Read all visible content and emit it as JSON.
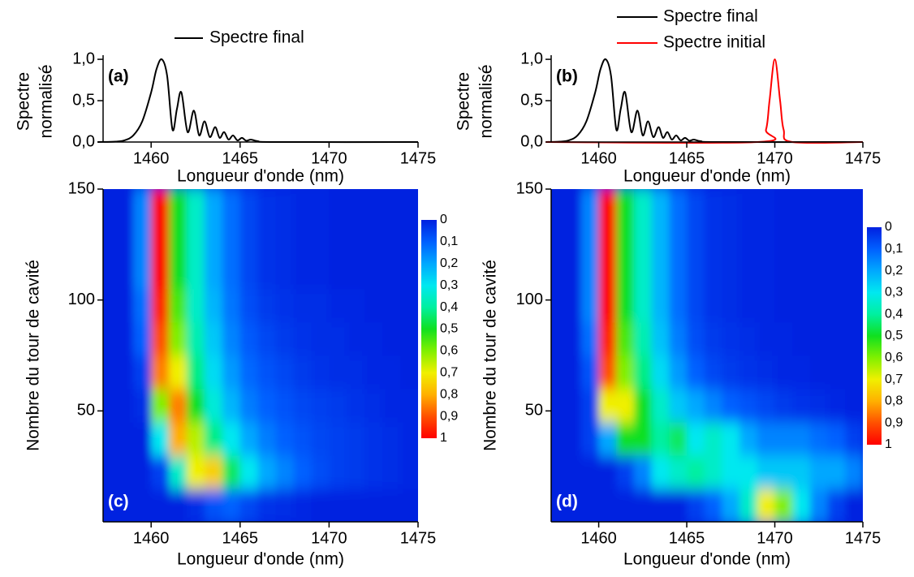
{
  "chart_data": [
    {
      "type": "line",
      "label": "(a)",
      "xlabel": "Longueur d'onde (nm)",
      "ylabel": [
        "Spectre",
        "normalisé"
      ],
      "xlim": [
        1457.3,
        1475
      ],
      "ylim": [
        0,
        1.05
      ],
      "xticks": [
        1460,
        1465,
        1470,
        1475
      ],
      "yticks": [
        {
          "value": 0,
          "label": "0,0"
        },
        {
          "value": 0.5,
          "label": "0,5"
        },
        {
          "value": 1,
          "label": "1,0"
        }
      ],
      "legend": "above",
      "series": [
        {
          "name": "Spectre final",
          "color": "#000000",
          "x": [
            1457,
            1458,
            1458.5,
            1459,
            1459.5,
            1460,
            1460.3,
            1460.6,
            1460.9,
            1461.2,
            1461.45,
            1461.7,
            1462.05,
            1462.4,
            1462.7,
            1463,
            1463.3,
            1463.6,
            1463.85,
            1464.1,
            1464.35,
            1464.6,
            1464.85,
            1465.1,
            1465.35,
            1465.6,
            1466,
            1467,
            1475
          ],
          "values": [
            0,
            0.005,
            0.02,
            0.08,
            0.25,
            0.6,
            0.88,
            1,
            0.8,
            0.15,
            0.4,
            0.6,
            0.12,
            0.38,
            0.08,
            0.25,
            0.06,
            0.18,
            0.05,
            0.12,
            0.03,
            0.08,
            0.02,
            0.05,
            0.015,
            0.03,
            0.01,
            0,
            0
          ]
        }
      ]
    },
    {
      "type": "line",
      "label": "(b)",
      "xlabel": "Longueur d'onde (nm)",
      "ylabel": [
        "Spectre",
        "normalisé"
      ],
      "xlim": [
        1457.3,
        1475
      ],
      "ylim": [
        0,
        1.05
      ],
      "xticks": [
        1460,
        1465,
        1470,
        1475
      ],
      "yticks": [
        {
          "value": 0,
          "label": "0,0"
        },
        {
          "value": 0.5,
          "label": "0,5"
        },
        {
          "value": 1,
          "label": "1,0"
        }
      ],
      "legend": "above",
      "series": [
        {
          "name": "Spectre final",
          "color": "#000000",
          "x": [
            1457,
            1457.8,
            1458.3,
            1458.8,
            1459.3,
            1459.8,
            1460.1,
            1460.4,
            1460.7,
            1461,
            1461.25,
            1461.5,
            1461.85,
            1462.2,
            1462.5,
            1462.8,
            1463.1,
            1463.4,
            1463.65,
            1463.9,
            1464.15,
            1464.4,
            1464.65,
            1464.9,
            1465.15,
            1465.4,
            1465.8,
            1466.8,
            1475
          ],
          "values": [
            0,
            0.005,
            0.02,
            0.08,
            0.25,
            0.6,
            0.88,
            1,
            0.8,
            0.15,
            0.4,
            0.6,
            0.12,
            0.38,
            0.08,
            0.25,
            0.06,
            0.18,
            0.05,
            0.12,
            0.03,
            0.08,
            0.02,
            0.05,
            0.015,
            0.03,
            0.01,
            0,
            0
          ]
        },
        {
          "name": "Spectre initial",
          "color": "#ff0000",
          "x": [
            1457,
            1469,
            1469.5,
            1469.7,
            1470,
            1470.3,
            1470.5,
            1471,
            1475
          ],
          "values": [
            0,
            0,
            0.15,
            0.5,
            1,
            0.5,
            0.15,
            0,
            0
          ]
        }
      ]
    },
    {
      "type": "heatmap",
      "label": "(c)",
      "xlabel": "Longueur d'onde (nm)",
      "ylabel": "Nombre du tour de cavité",
      "xlim": [
        1457.3,
        1475
      ],
      "ylim": [
        0,
        150
      ],
      "xticks": [
        1460,
        1465,
        1470,
        1475
      ],
      "yticks": [
        50,
        100,
        150
      ],
      "x": [
        1457.5,
        1458.5,
        1459.5,
        1460.5,
        1461.5,
        1462.5,
        1463.5,
        1464.5,
        1465.5,
        1466.5,
        1467.5,
        1468.5,
        1469.5,
        1470.5,
        1471.5,
        1472.5,
        1473.5,
        1474.5
      ],
      "y": [
        7.5,
        22.5,
        37.5,
        52.5,
        67.5,
        82.5,
        97.5,
        112.5,
        127.5,
        142.5
      ],
      "values": [
        [
          0,
          0,
          0,
          0,
          0,
          0.02,
          0.08,
          0.1,
          0.06,
          0.03,
          0.02,
          0.01,
          0,
          0,
          0,
          0,
          0,
          0
        ],
        [
          0,
          0,
          0,
          0.05,
          0.35,
          0.7,
          0.75,
          0.45,
          0.3,
          0.2,
          0.15,
          0.1,
          0.07,
          0.05,
          0.04,
          0.03,
          0.02,
          0.01
        ],
        [
          0,
          0,
          0,
          0.3,
          0.8,
          0.65,
          0.42,
          0.3,
          0.2,
          0.14,
          0.1,
          0.08,
          0.06,
          0.05,
          0.04,
          0.03,
          0.02,
          0.01
        ],
        [
          0,
          0,
          0.02,
          0.6,
          0.85,
          0.5,
          0.33,
          0.22,
          0.14,
          0.1,
          0.08,
          0.06,
          0.05,
          0.04,
          0.03,
          0.02,
          0.01,
          0.01
        ],
        [
          0,
          0,
          0.05,
          0.85,
          0.7,
          0.42,
          0.28,
          0.18,
          0.11,
          0.08,
          0.06,
          0.04,
          0.03,
          0.02,
          0.02,
          0.01,
          0.01,
          0
        ],
        [
          0,
          0,
          0.1,
          0.9,
          0.6,
          0.38,
          0.25,
          0.15,
          0.09,
          0.06,
          0.04,
          0.03,
          0.02,
          0.02,
          0.01,
          0.01,
          0,
          0
        ],
        [
          0,
          0,
          0.12,
          0.95,
          0.55,
          0.35,
          0.22,
          0.13,
          0.07,
          0.04,
          0.03,
          0.02,
          0.02,
          0.01,
          0.01,
          0,
          0,
          0
        ],
        [
          0,
          0,
          0.15,
          1,
          0.5,
          0.35,
          0.2,
          0.12,
          0.06,
          0.03,
          0.02,
          0.01,
          0.01,
          0,
          0,
          0,
          0,
          0
        ],
        [
          0,
          0,
          0.15,
          1,
          0.5,
          0.35,
          0.2,
          0.12,
          0.06,
          0.03,
          0.02,
          0.01,
          0.01,
          0,
          0,
          0,
          0,
          0
        ],
        [
          0,
          0,
          0.15,
          1,
          0.5,
          0.35,
          0.2,
          0.12,
          0.06,
          0.03,
          0.02,
          0.01,
          0.01,
          0,
          0,
          0,
          0,
          0
        ]
      ],
      "clim": [
        0,
        1
      ],
      "colorscale": [
        "#0020e0",
        "#0060ff",
        "#00a8ff",
        "#00e8f0",
        "#00f0a0",
        "#10e020",
        "#80f000",
        "#f0f000",
        "#ffb000",
        "#ff5000",
        "#ff0000"
      ],
      "colorbar_ticks": [
        0,
        {
          "value": 0.1,
          "label": "0,1"
        },
        {
          "value": 0.2,
          "label": "0,2"
        },
        {
          "value": 0.3,
          "label": "0,3"
        },
        {
          "value": 0.4,
          "label": "0,4"
        },
        {
          "value": 0.5,
          "label": "0,5"
        },
        {
          "value": 0.6,
          "label": "0,6"
        },
        {
          "value": 0.7,
          "label": "0,7"
        },
        {
          "value": 0.8,
          "label": "0,8"
        },
        {
          "value": 0.9,
          "label": "0,9"
        },
        1
      ]
    },
    {
      "type": "heatmap",
      "label": "(d)",
      "xlabel": "Longueur d'onde (nm)",
      "ylabel": "Nombre du tour de cavité",
      "xlim": [
        1457.3,
        1475
      ],
      "ylim": [
        0,
        150
      ],
      "xticks": [
        1460,
        1465,
        1470,
        1475
      ],
      "yticks": [
        50,
        100,
        150
      ],
      "x": [
        1457.5,
        1458.5,
        1459.5,
        1460.5,
        1461.5,
        1462.5,
        1463.5,
        1464.5,
        1465.5,
        1466.5,
        1467.5,
        1468.5,
        1469.5,
        1470.5,
        1471.5,
        1472.5,
        1473.5,
        1474.5
      ],
      "y": [
        7.5,
        22.5,
        37.5,
        52.5,
        67.5,
        82.5,
        97.5,
        112.5,
        127.5,
        142.5
      ],
      "values": [
        [
          0,
          0,
          0,
          0,
          0,
          0,
          0,
          0,
          0.05,
          0.1,
          0.2,
          0.35,
          0.7,
          0.6,
          0.3,
          0.15,
          0.05,
          0
        ],
        [
          0,
          0,
          0,
          0,
          0.05,
          0.15,
          0.3,
          0.35,
          0.4,
          0.35,
          0.3,
          0.3,
          0.25,
          0.25,
          0.25,
          0.2,
          0.2,
          0.15
        ],
        [
          0,
          0,
          0.05,
          0.2,
          0.5,
          0.5,
          0.4,
          0.45,
          0.3,
          0.35,
          0.3,
          0.2,
          0.15,
          0.15,
          0.15,
          0.12,
          0.1,
          0.05
        ],
        [
          0,
          0,
          0.05,
          0.7,
          0.7,
          0.5,
          0.35,
          0.25,
          0.2,
          0.15,
          0.1,
          0.08,
          0.06,
          0.04,
          0.03,
          0.02,
          0.01,
          0
        ],
        [
          0,
          0,
          0.08,
          0.9,
          0.6,
          0.42,
          0.28,
          0.18,
          0.1,
          0.06,
          0.04,
          0.03,
          0.02,
          0.01,
          0.01,
          0,
          0,
          0
        ],
        [
          0,
          0,
          0.12,
          0.95,
          0.55,
          0.38,
          0.24,
          0.14,
          0.07,
          0.04,
          0.03,
          0.02,
          0.01,
          0.01,
          0,
          0,
          0,
          0
        ],
        [
          0,
          0,
          0.15,
          1,
          0.5,
          0.35,
          0.22,
          0.12,
          0.06,
          0.03,
          0.02,
          0.01,
          0.01,
          0,
          0,
          0,
          0,
          0
        ],
        [
          0,
          0,
          0.15,
          1,
          0.5,
          0.35,
          0.22,
          0.12,
          0.06,
          0.03,
          0.02,
          0.01,
          0.01,
          0,
          0,
          0,
          0,
          0
        ],
        [
          0,
          0,
          0.15,
          1,
          0.5,
          0.35,
          0.22,
          0.12,
          0.06,
          0.03,
          0.02,
          0.01,
          0.01,
          0,
          0,
          0,
          0,
          0
        ],
        [
          0,
          0,
          0.15,
          1,
          0.5,
          0.35,
          0.22,
          0.12,
          0.06,
          0.03,
          0.02,
          0.01,
          0.01,
          0,
          0,
          0,
          0,
          0
        ]
      ],
      "clim": [
        0,
        1
      ],
      "colorscale": [
        "#0020e0",
        "#0060ff",
        "#00a8ff",
        "#00e8f0",
        "#00f0a0",
        "#10e020",
        "#80f000",
        "#f0f000",
        "#ffb000",
        "#ff5000",
        "#ff0000"
      ],
      "colorbar_ticks": [
        0,
        {
          "value": 0.1,
          "label": "0,1"
        },
        {
          "value": 0.2,
          "label": "0,2"
        },
        {
          "value": 0.3,
          "label": "0,3"
        },
        {
          "value": 0.4,
          "label": "0,4"
        },
        {
          "value": 0.5,
          "label": "0,5"
        },
        {
          "value": 0.6,
          "label": "0,6"
        },
        {
          "value": 0.7,
          "label": "0,7"
        },
        {
          "value": 0.8,
          "label": "0,8"
        },
        {
          "value": 0.9,
          "label": "0,9"
        },
        1
      ]
    }
  ]
}
